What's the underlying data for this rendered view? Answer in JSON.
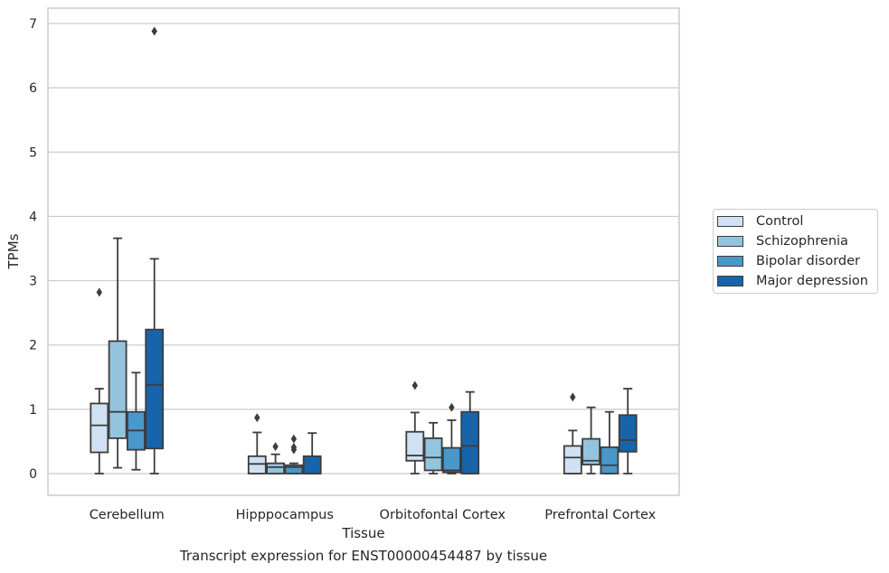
{
  "caption": "Transcript expression for ENST00000454487 by tissue",
  "chart_data": {
    "type": "boxplot",
    "xlabel": "Tissue",
    "ylabel": "TPMs",
    "ylim": [
      -0.33,
      7.22
    ],
    "yticks": [
      "0",
      "1",
      "2",
      "3",
      "4",
      "5",
      "6",
      "7"
    ],
    "grid": true,
    "legend_position": "right",
    "categories": [
      "Cerebellum",
      "Hipppocampus",
      "Orbitofontal Cortex",
      "Prefrontal Cortex"
    ],
    "series": [
      {
        "name": "Control",
        "color": "#cfe1f2",
        "boxes": [
          {
            "whislo": 0.0,
            "q1": 0.33,
            "med": 0.75,
            "q3": 1.09,
            "whishi": 1.32,
            "fliers": [
              2.82
            ]
          },
          {
            "whislo": 0.0,
            "q1": 0.0,
            "med": 0.15,
            "q3": 0.27,
            "whishi": 0.64,
            "fliers": [
              0.87
            ]
          },
          {
            "whislo": 0.0,
            "q1": 0.2,
            "med": 0.28,
            "q3": 0.65,
            "whishi": 0.95,
            "fliers": [
              1.37
            ]
          },
          {
            "whislo": 0.0,
            "q1": 0.0,
            "med": 0.25,
            "q3": 0.43,
            "whishi": 0.67,
            "fliers": [
              1.19
            ]
          }
        ]
      },
      {
        "name": "Schizophrenia",
        "color": "#93c4de",
        "boxes": [
          {
            "whislo": 0.09,
            "q1": 0.55,
            "med": 0.96,
            "q3": 2.06,
            "whishi": 3.66,
            "fliers": []
          },
          {
            "whislo": 0.0,
            "q1": 0.0,
            "med": 0.1,
            "q3": 0.16,
            "whishi": 0.3,
            "fliers": [
              0.42
            ]
          },
          {
            "whislo": 0.0,
            "q1": 0.05,
            "med": 0.25,
            "q3": 0.55,
            "whishi": 0.79,
            "fliers": []
          },
          {
            "whislo": 0.0,
            "q1": 0.14,
            "med": 0.2,
            "q3": 0.54,
            "whishi": 1.03,
            "fliers": []
          }
        ]
      },
      {
        "name": "Bipolar disorder",
        "color": "#4a97c9",
        "boxes": [
          {
            "whislo": 0.06,
            "q1": 0.37,
            "med": 0.67,
            "q3": 0.96,
            "whishi": 1.57,
            "fliers": []
          },
          {
            "whislo": 0.0,
            "q1": 0.0,
            "med": 0.1,
            "q3": 0.13,
            "whishi": 0.16,
            "fliers": [
              0.37,
              0.41,
              0.54
            ]
          },
          {
            "whislo": 0.0,
            "q1": 0.02,
            "med": 0.05,
            "q3": 0.4,
            "whishi": 0.83,
            "fliers": [
              1.03
            ]
          },
          {
            "whislo": 0.0,
            "q1": 0.0,
            "med": 0.13,
            "q3": 0.41,
            "whishi": 0.96,
            "fliers": []
          }
        ]
      },
      {
        "name": "Major depression",
        "color": "#1764ab",
        "boxes": [
          {
            "whislo": 0.0,
            "q1": 0.39,
            "med": 1.38,
            "q3": 2.24,
            "whishi": 3.34,
            "fliers": [
              6.88
            ]
          },
          {
            "whislo": 0.0,
            "q1": 0.0,
            "med": 0.0,
            "q3": 0.27,
            "whishi": 0.63,
            "fliers": []
          },
          {
            "whislo": 0.0,
            "q1": 0.0,
            "med": 0.43,
            "q3": 0.96,
            "whishi": 1.27,
            "fliers": []
          },
          {
            "whislo": 0.0,
            "q1": 0.34,
            "med": 0.52,
            "q3": 0.91,
            "whishi": 1.32,
            "fliers": []
          }
        ]
      }
    ]
  }
}
